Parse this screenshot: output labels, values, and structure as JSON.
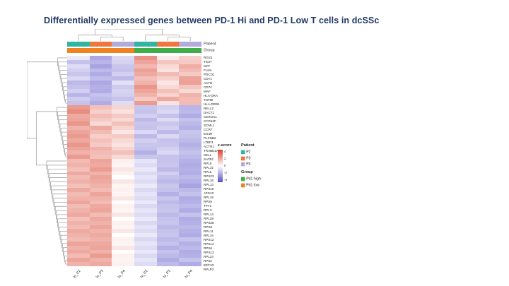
{
  "chart_data": {
    "type": "heatmap",
    "title": "Differentially expressed genes between PD-1 Hi  and PD-1 Low T cells in dcSSc",
    "rows": [
      "RGS1",
      "TIGIT",
      "MAT",
      "FLNA",
      "PDCD1",
      "CDT1",
      "ACTB",
      "CD74",
      "MAF",
      "HLA-DRA",
      "TGFBI",
      "HLA-DRB1",
      "NELL2",
      "DACT1",
      "CEROX1",
      "CCR12F",
      "SCML1",
      "CCR7",
      "EG4R",
      "PLXNB2",
      "LTBF3",
      "ACTN1",
      "TRABD2A",
      "SELL",
      "SATB1",
      "RPL8",
      "RPL32",
      "RPL5",
      "RPS23",
      "RPL18",
      "RPL13",
      "RPS16",
      "ATG10",
      "RPL19",
      "RPS5",
      "TPT1",
      "RPL3",
      "RPL14",
      "RPL28",
      "RPS25",
      "RPS8",
      "RPL11",
      "RPL34",
      "RPS12",
      "RPS14",
      "RPS6",
      "RPS13",
      "RPL23",
      "RPS2",
      "EEF1G",
      "RPLP2"
    ],
    "columns": [
      "lo_P2",
      "lo_P3",
      "lo_P4",
      "hi_P2",
      "hi_P3",
      "hi_P4"
    ],
    "values": [
      [
        -0.5,
        -2.0,
        -0.9,
        2.3,
        0.4,
        1.0
      ],
      [
        -1.4,
        -1.7,
        -1.0,
        1.9,
        1.2,
        1.1
      ],
      [
        -0.8,
        -2.1,
        -1.3,
        1.5,
        0.8,
        1.7
      ],
      [
        -1.1,
        -1.6,
        -1.4,
        2.0,
        0.6,
        1.4
      ],
      [
        -1.3,
        -1.9,
        -1.1,
        1.8,
        1.4,
        1.1
      ],
      [
        -0.9,
        -1.5,
        -1.6,
        1.3,
        1.0,
        1.9
      ],
      [
        -1.6,
        -2.0,
        -0.7,
        1.6,
        0.5,
        2.0
      ],
      [
        -1.4,
        -1.8,
        -1.2,
        2.2,
        0.8,
        1.2
      ],
      [
        -1.1,
        -1.9,
        -1.0,
        1.9,
        1.3,
        0.8
      ],
      [
        -1.7,
        -1.4,
        -1.1,
        1.6,
        0.9,
        1.6
      ],
      [
        -1.2,
        -1.6,
        -1.4,
        1.1,
        1.8,
        1.4
      ],
      [
        -1.4,
        -1.9,
        -0.8,
        2.1,
        0.6,
        1.4
      ],
      [
        2.1,
        1.3,
        0.9,
        -1.3,
        -1.1,
        -1.7
      ],
      [
        2.4,
        1.0,
        0.6,
        -1.4,
        -0.9,
        -1.6
      ],
      [
        1.8,
        1.4,
        1.1,
        -1.1,
        -1.4,
        -1.9
      ],
      [
        1.9,
        1.1,
        0.8,
        -1.6,
        -0.8,
        -1.4
      ],
      [
        2.2,
        0.8,
        1.3,
        -1.3,
        -1.3,
        -1.6
      ],
      [
        1.6,
        1.8,
        0.9,
        -1.4,
        -1.1,
        -1.8
      ],
      [
        1.9,
        1.4,
        0.5,
        -0.9,
        -1.6,
        -1.3
      ],
      [
        2.1,
        1.0,
        1.1,
        -1.6,
        -0.9,
        -1.4
      ],
      [
        1.8,
        1.3,
        0.8,
        -1.1,
        -1.4,
        -1.6
      ],
      [
        2.2,
        1.1,
        0.6,
        -1.3,
        -1.3,
        -1.8
      ],
      [
        1.9,
        1.6,
        0.9,
        -1.4,
        -1.1,
        -1.6
      ],
      [
        1.6,
        1.4,
        1.3,
        -1.8,
        -0.9,
        -1.4
      ],
      [
        2.1,
        1.3,
        0.8,
        -1.3,
        -1.4,
        -1.6
      ],
      [
        1.4,
        1.9,
        0.3,
        -0.6,
        -1.4,
        -1.8
      ],
      [
        1.6,
        1.8,
        0.2,
        -0.8,
        -1.3,
        -1.9
      ],
      [
        1.3,
        2.1,
        0.5,
        -0.5,
        -1.6,
        -1.8
      ],
      [
        1.8,
        1.6,
        0.3,
        -0.9,
        -1.1,
        -1.9
      ],
      [
        1.4,
        1.9,
        0.0,
        -0.6,
        -1.4,
        -1.6
      ],
      [
        1.6,
        1.8,
        0.5,
        -0.8,
        -1.6,
        -1.8
      ],
      [
        1.3,
        1.6,
        0.2,
        -0.5,
        -1.3,
        -2.1
      ],
      [
        1.8,
        1.4,
        0.3,
        -0.9,
        -1.4,
        -1.6
      ],
      [
        1.4,
        1.9,
        0.2,
        -0.6,
        -1.8,
        -1.4
      ],
      [
        1.6,
        1.6,
        0.5,
        -0.8,
        -1.3,
        -1.9
      ],
      [
        1.9,
        1.4,
        0.0,
        -0.5,
        -1.6,
        -1.8
      ],
      [
        1.4,
        1.8,
        0.3,
        -0.9,
        -1.4,
        -1.6
      ],
      [
        1.6,
        1.9,
        0.2,
        -0.6,
        -1.3,
        -1.9
      ],
      [
        1.8,
        1.4,
        0.5,
        -0.8,
        -1.6,
        -1.4
      ],
      [
        1.3,
        1.8,
        0.0,
        -0.5,
        -1.4,
        -1.9
      ],
      [
        1.6,
        1.6,
        0.3,
        -0.9,
        -1.3,
        -1.8
      ],
      [
        1.4,
        1.9,
        0.2,
        -0.6,
        -1.6,
        -1.6
      ],
      [
        1.8,
        1.6,
        0.5,
        -0.8,
        -1.4,
        -1.8
      ],
      [
        1.6,
        1.8,
        0.0,
        -0.5,
        -1.3,
        -1.9
      ],
      [
        1.4,
        1.6,
        0.3,
        -0.9,
        -1.6,
        -1.4
      ],
      [
        1.9,
        1.8,
        0.2,
        -0.6,
        -1.4,
        -1.8
      ],
      [
        1.6,
        1.9,
        0.5,
        -0.8,
        -1.8,
        -1.6
      ],
      [
        1.8,
        1.6,
        0.0,
        -0.5,
        -1.4,
        -1.9
      ],
      [
        1.4,
        2.1,
        0.3,
        -0.9,
        -1.6,
        -1.8
      ],
      [
        1.9,
        1.6,
        0.2,
        -0.6,
        -1.9,
        -1.4
      ],
      [
        1.6,
        1.8,
        0.3,
        -0.8,
        -1.6,
        -1.9
      ]
    ],
    "column_annotations": {
      "Patient": [
        "P2",
        "P3",
        "P4",
        "P2",
        "P3",
        "P4"
      ],
      "Group": [
        "Pd1 low",
        "Pd1 low",
        "Pd1 low",
        "Pd1 high",
        "Pd1 high",
        "Pd1 high"
      ]
    },
    "colorbar": {
      "label": "z-score",
      "ticks": [
        4,
        2,
        0,
        -2,
        -4
      ],
      "range": [
        -4,
        4
      ]
    },
    "clustered": {
      "rows": true,
      "columns": true
    },
    "legend_position": "right"
  },
  "heatmap_labels": {
    "patient": "Patient",
    "group": "Group"
  },
  "legend": {
    "zscore_title": "z-score",
    "zscore_ticks": [
      "4",
      "2",
      "0",
      "-2",
      "-4"
    ],
    "patient_title": "Patient",
    "patient_items": [
      "P2",
      "P3",
      "P4"
    ],
    "group_title": "Group",
    "group_items": [
      "Pd1 high",
      "Pd1 low"
    ]
  },
  "colors": {
    "heat_positive": "#d9402c",
    "heat_negative": "#5a50c8",
    "patient": {
      "P2": "#2fb5a0",
      "P3": "#f2753b",
      "P4": "#b3aadb"
    },
    "group": {
      "Pd1 high": "#3fae49",
      "Pd1 low": "#f08221"
    },
    "title": "#1f3864",
    "dendrogram": "#999999"
  }
}
